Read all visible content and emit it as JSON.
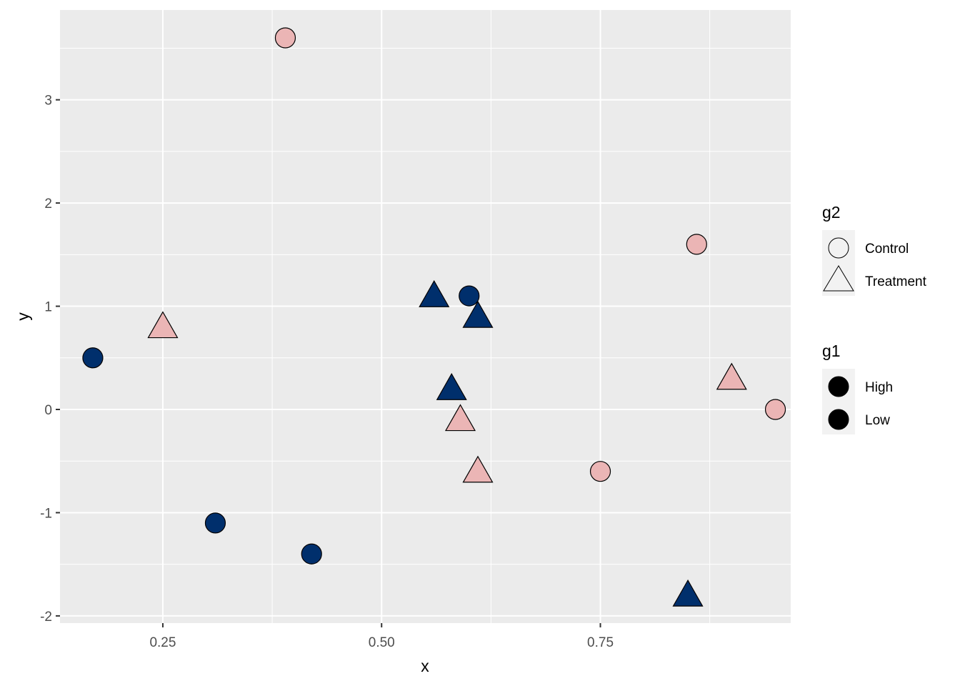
{
  "chart_data": {
    "type": "scatter",
    "title": "",
    "xlabel": "x",
    "ylabel": "y",
    "xlim": [
      0.1325,
      0.9675
    ],
    "ylim": [
      -2.07,
      3.87
    ],
    "x_ticks": [
      0.25,
      0.5,
      0.75
    ],
    "x_tick_labels": [
      "0.25",
      "0.50",
      "0.75"
    ],
    "y_ticks": [
      -2,
      -1,
      0,
      1,
      2,
      3
    ],
    "y_tick_labels": [
      "-2",
      "-1",
      "0",
      "1",
      "2",
      "3"
    ],
    "x_minor": [
      0.125,
      0.375,
      0.625,
      0.875
    ],
    "y_minor": [
      -1.5,
      -0.5,
      0.5,
      1.5,
      2.5,
      3.5
    ],
    "grid": true,
    "panel_background": "#EBEBEB",
    "legend_position": "right",
    "colors": {
      "High": "#002F6C",
      "Low": "#EBB5B5",
      "outline": "#000000"
    },
    "shape_map": {
      "Control": "circle",
      "Treatment": "triangle"
    },
    "points": [
      {
        "x": 0.17,
        "y": 0.5,
        "g1": "High",
        "g2": "Control"
      },
      {
        "x": 0.31,
        "y": -1.1,
        "g1": "High",
        "g2": "Control"
      },
      {
        "x": 0.42,
        "y": -1.4,
        "g1": "High",
        "g2": "Control"
      },
      {
        "x": 0.6,
        "y": 1.1,
        "g1": "High",
        "g2": "Control"
      },
      {
        "x": 0.56,
        "y": 1.1,
        "g1": "High",
        "g2": "Treatment"
      },
      {
        "x": 0.61,
        "y": 0.9,
        "g1": "High",
        "g2": "Treatment"
      },
      {
        "x": 0.58,
        "y": 0.2,
        "g1": "High",
        "g2": "Treatment"
      },
      {
        "x": 0.85,
        "y": -1.8,
        "g1": "High",
        "g2": "Treatment"
      },
      {
        "x": 0.39,
        "y": 3.6,
        "g1": "Low",
        "g2": "Control"
      },
      {
        "x": 0.86,
        "y": 1.6,
        "g1": "Low",
        "g2": "Control"
      },
      {
        "x": 0.95,
        "y": 0.0,
        "g1": "Low",
        "g2": "Control"
      },
      {
        "x": 0.75,
        "y": -0.6,
        "g1": "Low",
        "g2": "Control"
      },
      {
        "x": 0.25,
        "y": 0.8,
        "g1": "Low",
        "g2": "Treatment"
      },
      {
        "x": 0.9,
        "y": 0.3,
        "g1": "Low",
        "g2": "Treatment"
      },
      {
        "x": 0.59,
        "y": -0.1,
        "g1": "Low",
        "g2": "Treatment"
      },
      {
        "x": 0.61,
        "y": -0.6,
        "g1": "Low",
        "g2": "Treatment"
      }
    ],
    "legends": [
      {
        "title": "g2",
        "entries": [
          {
            "label": "Control",
            "shape": "circle",
            "fill": "none"
          },
          {
            "label": "Treatment",
            "shape": "triangle",
            "fill": "none"
          }
        ]
      },
      {
        "title": "g1",
        "entries": [
          {
            "label": "High",
            "shape": "circle",
            "fill": "#000000"
          },
          {
            "label": "Low",
            "shape": "circle",
            "fill": "#000000"
          }
        ]
      }
    ]
  }
}
